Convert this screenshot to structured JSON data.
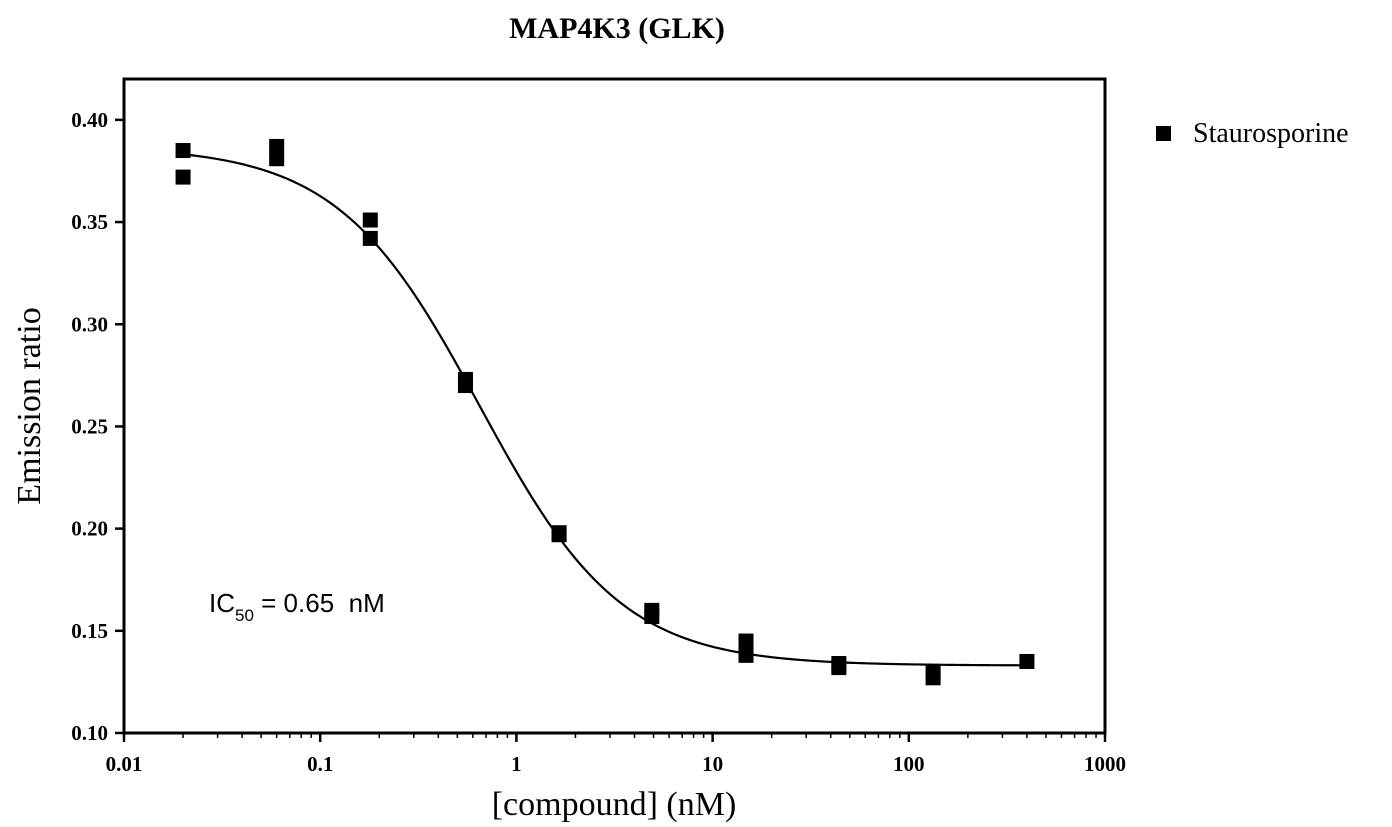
{
  "chart_data": {
    "type": "scatter",
    "title": "MAP4K3 (GLK)",
    "xlabel": "[compound] (nM)",
    "ylabel": "Emission ratio",
    "x_scale": "log",
    "xlim": [
      0.01,
      1000
    ],
    "ylim": [
      0.1,
      0.42
    ],
    "x_ticks": [
      0.01,
      0.1,
      1,
      10,
      100,
      1000
    ],
    "x_tick_labels": [
      "0.01",
      "0.1",
      "1",
      "10",
      "100",
      "1000"
    ],
    "y_ticks": [
      0.1,
      0.15,
      0.2,
      0.25,
      0.3,
      0.35,
      0.4
    ],
    "y_tick_labels": [
      "0.10",
      "0.15",
      "0.20",
      "0.25",
      "0.30",
      "0.35",
      "0.40"
    ],
    "grid": false,
    "legend_position": "right",
    "series": [
      {
        "name": "Staurosporine",
        "marker": "square",
        "color": "#000000",
        "points": [
          {
            "x": 0.02,
            "y": 0.385
          },
          {
            "x": 0.02,
            "y": 0.372
          },
          {
            "x": 0.06,
            "y": 0.387
          },
          {
            "x": 0.06,
            "y": 0.381
          },
          {
            "x": 0.18,
            "y": 0.351
          },
          {
            "x": 0.18,
            "y": 0.342
          },
          {
            "x": 0.55,
            "y": 0.273
          },
          {
            "x": 0.55,
            "y": 0.27
          },
          {
            "x": 1.65,
            "y": 0.198
          },
          {
            "x": 1.65,
            "y": 0.197
          },
          {
            "x": 4.9,
            "y": 0.16
          },
          {
            "x": 4.9,
            "y": 0.157
          },
          {
            "x": 14.8,
            "y": 0.145
          },
          {
            "x": 14.8,
            "y": 0.138
          },
          {
            "x": 44,
            "y": 0.134
          },
          {
            "x": 44,
            "y": 0.132
          },
          {
            "x": 133,
            "y": 0.13
          },
          {
            "x": 133,
            "y": 0.127
          },
          {
            "x": 400,
            "y": 0.135
          }
        ]
      }
    ],
    "fit_curve": {
      "type": "sigmoidal dose-response",
      "top": 0.387,
      "bottom": 0.133,
      "ic50": 0.65,
      "hill": 1.2
    },
    "annotation": {
      "prefix": "IC",
      "subscript": "50",
      "suffix": " = 0.65  nM"
    }
  }
}
